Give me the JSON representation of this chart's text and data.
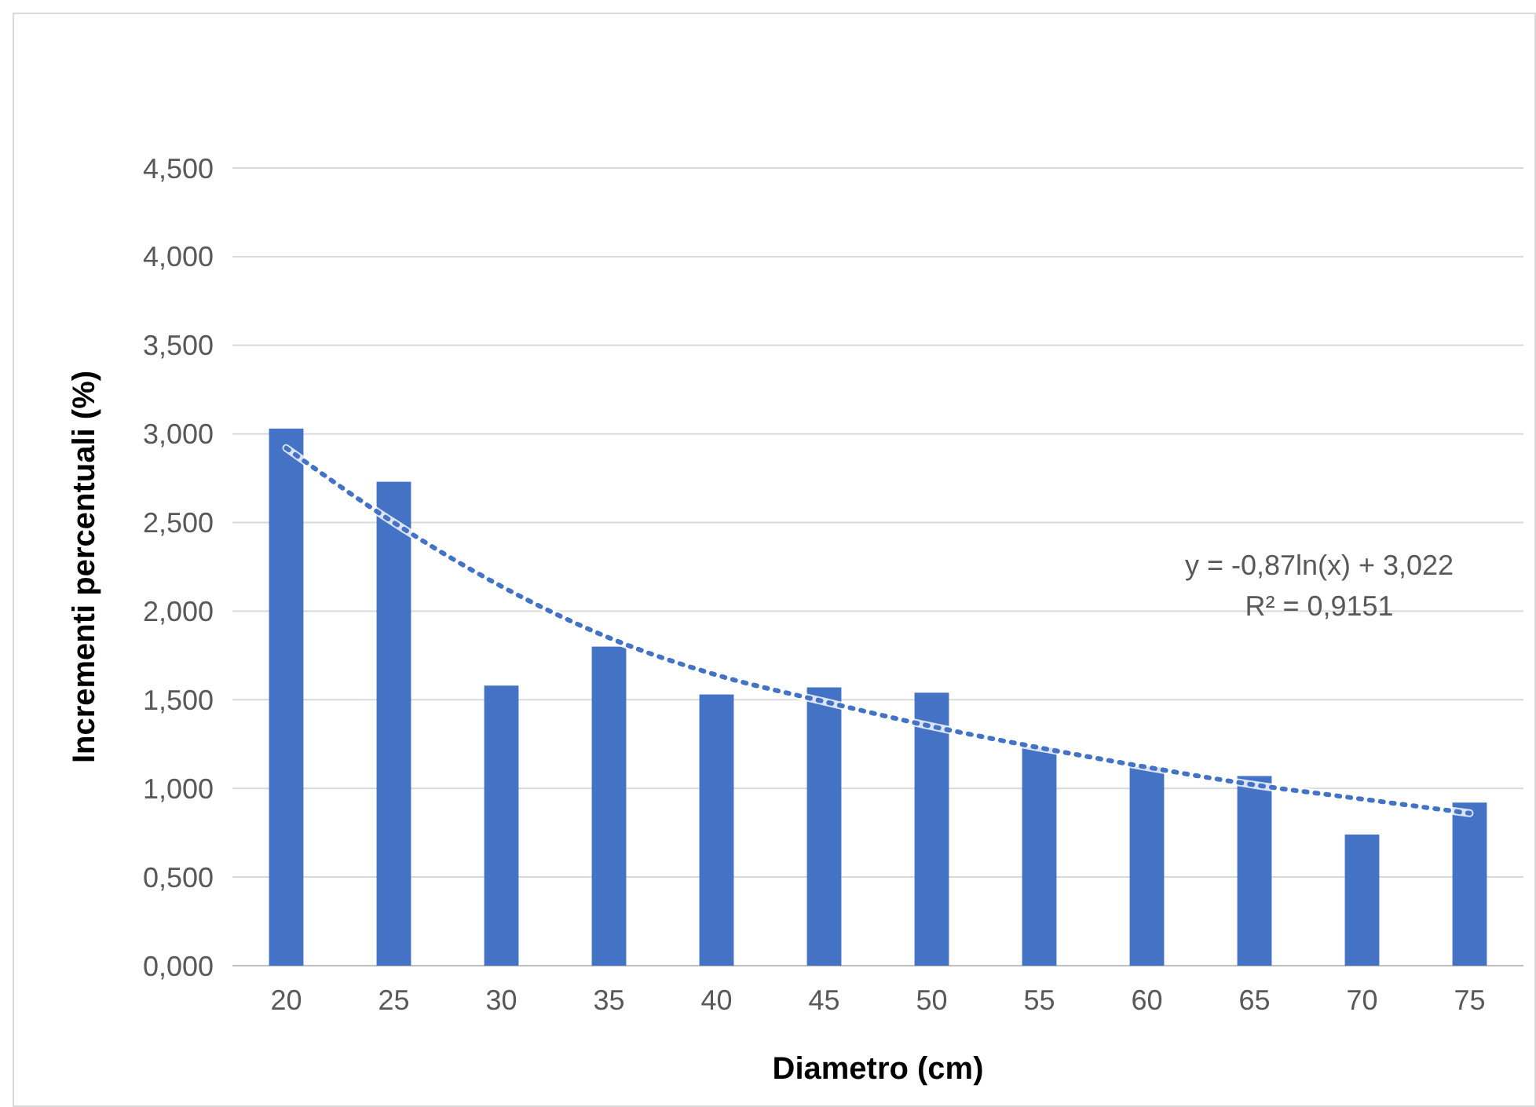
{
  "chart_data": {
    "type": "bar",
    "xlabel": "Diametro (cm)",
    "ylabel": "Incrementi percentuali (%)",
    "categories": [
      "20",
      "25",
      "30",
      "35",
      "40",
      "45",
      "50",
      "55",
      "60",
      "65",
      "70",
      "75"
    ],
    "series": [
      {
        "color": "#4472c4",
        "values": [
          3.03,
          2.73,
          1.58,
          1.8,
          1.53,
          1.57,
          1.54,
          1.23,
          1.12,
          1.07,
          0.74,
          0.92
        ]
      },
      {
        "type": "line",
        "color": "#4472c4",
        "line_style": "dotted",
        "marker": "none",
        "x": [
          "20",
          "25",
          "30",
          "35",
          "40",
          "45",
          "50",
          "55",
          "60",
          "65",
          "70",
          "75"
        ],
        "values": [
          2.92,
          2.5,
          2.14,
          1.85,
          1.64,
          1.49,
          1.35,
          1.23,
          1.12,
          1.02,
          0.94,
          0.86
        ]
      }
    ],
    "ylim": [
      0,
      4.5
    ],
    "yticks": [
      {
        "value": 0,
        "label": "0,000"
      },
      {
        "value": 0.5,
        "label": "0,500"
      },
      {
        "value": 1,
        "label": "1,000"
      },
      {
        "value": 1.5,
        "label": "1,500"
      },
      {
        "value": 2,
        "label": "2,000"
      },
      {
        "value": 2.5,
        "label": "2,500"
      },
      {
        "value": 3,
        "label": "3,000"
      },
      {
        "value": 3.5,
        "label": "3,500"
      },
      {
        "value": 4,
        "label": "4,000"
      },
      {
        "value": 4.5,
        "label": "4,500"
      }
    ],
    "grid": "y",
    "annotations": [
      "y = -0,87ln(x) + 3,022",
      "R² = 0,9151"
    ]
  }
}
